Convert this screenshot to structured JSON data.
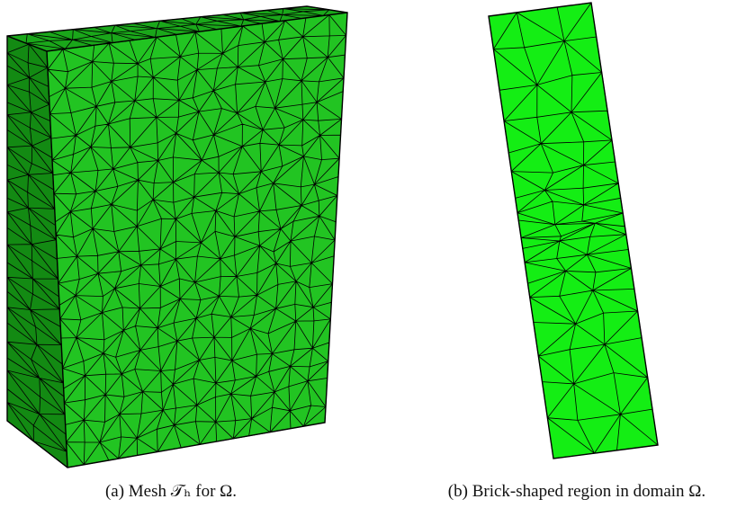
{
  "figures": [
    {
      "caption": "(a) Mesh 𝒯ₕ for Ω."
    },
    {
      "caption": "(b) Brick-shaped region in domain Ω."
    }
  ]
}
